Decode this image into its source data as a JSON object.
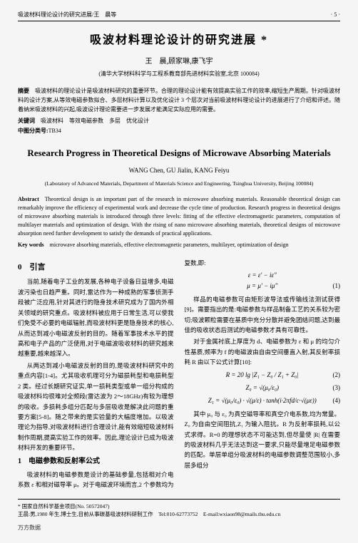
{
  "header": {
    "left": "吸波材料理论设计的研究进展/王　晨等",
    "right": "· 5 ·"
  },
  "title_cn": "吸波材料理论设计的研究进展 *",
  "authors_cn": "王　晨,顾家琳,康飞宇",
  "affiliation_cn": "(清华大学材料科学与工程系教育部先进材料实验室,北京 100084)",
  "abstract_cn": {
    "label": "摘要",
    "text": "吸波材料的理论设计是吸波材料研究的重要环节。合理的理论设计能有效提高实验工作的效率,缩短生产周期。针对吸波材料的设计方案,从等效电磁参数拟合、多层材料计算以及优化设计 3 个层次对当前吸波材料理论设计的进展进行了介绍和评述。随着纳米吸波材料的兴起,吸波设计理论需要进一步发展才能满足实际应用的需要。"
  },
  "keywords_cn": {
    "label": "关键词",
    "text": "吸波材料　等效电磁参数　多层　优化设计"
  },
  "classification": {
    "label": "中图分类号:",
    "text": "TB34"
  },
  "title_en": "Research Progress in Theoretical Designs of Microwave Absorbing Materials",
  "authors_en": "WANG Chen, GU Jialin, KANG Feiyu",
  "affiliation_en": "(Laboratory of Advanced Materials, Department of Materials Science and Engineering, Tsinghua University, Beijing 100084)",
  "abstract_en": {
    "label": "Abstract",
    "text": "Theoretical design is an important part of the research in microwave absorbing materials. Reasonable theoretical design can remarkably improve the efficiency of experimental work and decrease the cycle time of production. Research progress in theoretical designs of microwave absorbing materials is introduced through three levels: fitting of the effective electromagnetic parameters, computation of multilayer materials and optimization of design. With the rising of nano microwave absorbing materials, theoretical designs of microwave absorption need further development to satisfy the demands of practical applications."
  },
  "keywords_en": {
    "label": "Key words",
    "text": "microwave absorbing materials, effective electromagnetic parameters, multilayer, optimization of design"
  },
  "section0": {
    "title": "0　引言",
    "p1": "当前,随着电子工业的发展,各种电子设备日益增多,电磁波污染也日趋严重。同时,雷达作为一种成熟的军事侦测手段被广泛应用,针对其进行的隐身技术研究成为了国内外相关领域的研究重点。吸波材料被应用于日常生活,可以使我们免受不必要的电磁辐射,而吸波材料更是隐身技术的核心,从而达到减小电磁波反射的目的。随着军事技术水平的提高和电子产品的广泛使用,对于电磁波吸收材料的研究越来越重要,越来越深入。",
    "p2": "从两达到减小电磁波反射的目的,是吸波材料研究中的重点内容[1-4]。尤其吸收机理可分为磁损耗型和电损耗型 2 类。经过长期研究证实,单一损耗类型或单一组分构成的吸波材料均很难对全频段(雷达波为 2～18GHz)有较为理想的吸收。多损耗多组分匹配与多层吸收是解决此问题的重要方案[5-8]。随之带来的是实验量的大幅度增加。以吸波理论为指导,对吸波材料进行合理设计,能有效缩短吸波材料制作周期,提高实验工作的效率。因此,理论设计已成为吸波材料开发的重要环节。"
  },
  "section1": {
    "title": "1　电磁参数和反射率公式",
    "p1": "吸波材料的电磁参数是设计的基础参量,包括相对介电系数 ε 和相对磁导率 μ。对于电磁波环境而言,2 个参数均为"
  },
  "col2": {
    "p0": "复数,即:",
    "eq1": "ε = ε′ − iε″\nμ = μ′ − iμ″",
    "eq1_num": "(1)",
    "p1": "样品的电磁参数可由矩形波导法或传输线法测试获得[9]。需要指出的是:电磁参数与样品制备工艺的关系较为密切;吸波颗粒需要在基质中充分分散并避免团结问题,达到最佳的吸收状态后测试的电磁参数才具有可靠性。",
    "p2": "对于金属衬底上厚度为 d、电磁参数为 ε 和 μ 的均匀介性基质,频率为 f 的电磁波由自由空间垂直入射,其反射率损耗 R 由以下公式计算[10]:",
    "eq2": "R = 20 lg |Z₁ − Z₀ / Z₁ + Z₀|",
    "eq2_num": "(2)",
    "eq3": "Z₀ = √(μ₀/ε₀)",
    "eq3_num": "(3)",
    "eq4": "Z₁ = √(μ₀/ε₀) · √(μ/ε) · tanh(i·2πfd/c·√(με))",
    "eq4_num": "(4)",
    "p3": "其中 μ₀ 与 ε₀ 为真空磁导率和真空介电系数,均为常量。Z₀ 为自由空间阻抗,Z₁ 为输入阻抗。R 为反射率损耗,以公式求得。R=0 的理想状态不可能达到,但尽量使 |R| 在需要的吸波材料几乎无法达到这一要求,只能尽量增足电磁参数的匹配。单层单组分吸波材料的电磁参数调整范围较小,多层多组分"
  },
  "footnote": {
    "line1": "* 国家自然科学基金项目(No. 50572047)",
    "line2": "王晨:男,1980 年生,博士生,目前从事碳基吸波材料研制工作　Tel:010-62773752　E-mail:wxiaon98@mails.thu.edu.cn"
  },
  "watermark": "万方数据"
}
